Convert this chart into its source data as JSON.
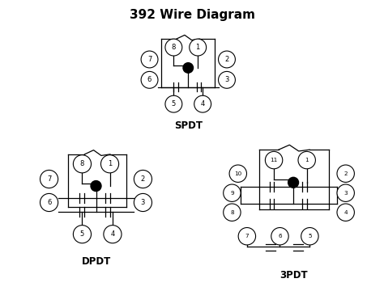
{
  "title": "392 Wire Diagram",
  "title_fontsize": 11,
  "bg_color": "#ffffff",
  "spdt_label": "SPDT",
  "dpdt_label": "DPDT",
  "tpdt_label": "3PDT",
  "lw": 0.9
}
